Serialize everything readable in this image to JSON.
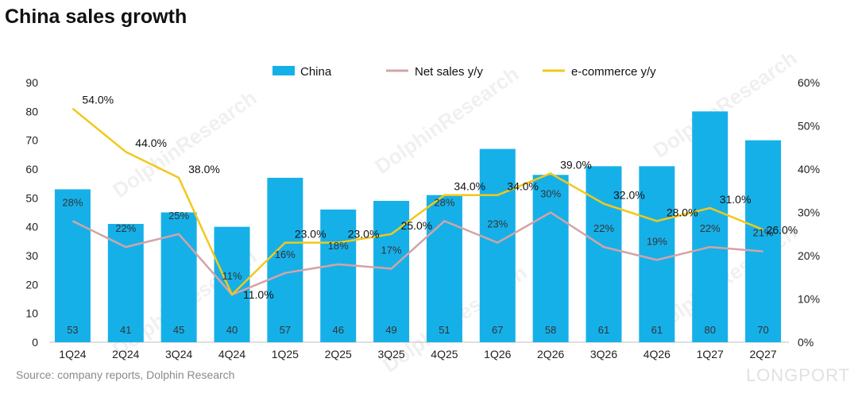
{
  "chart_data": {
    "type": "bar",
    "title": "China sales growth",
    "source": "Source: company reports, Dolphin Research",
    "watermark": "DolphinResearch",
    "brand_mark": "LONGPORT",
    "categories": [
      "1Q24",
      "2Q24",
      "3Q24",
      "4Q24",
      "1Q25",
      "2Q25",
      "3Q25",
      "4Q25",
      "1Q26",
      "2Q26",
      "3Q26",
      "4Q26",
      "1Q27",
      "2Q27"
    ],
    "y_left": {
      "ticks": [
        "0",
        "10",
        "20",
        "30",
        "40",
        "50",
        "60",
        "70",
        "80",
        "90"
      ],
      "lim": [
        0,
        90
      ]
    },
    "y_right": {
      "ticks": [
        "0%",
        "10%",
        "20%",
        "30%",
        "40%",
        "50%",
        "60%"
      ],
      "lim": [
        0,
        60
      ]
    },
    "series": [
      {
        "name": "China",
        "kind": "bar",
        "axis": "left",
        "color": "#16b0e8",
        "values": [
          53,
          41,
          45,
          40,
          57,
          46,
          49,
          51,
          67,
          58,
          61,
          61,
          80,
          70
        ],
        "labels": [
          "53",
          "41",
          "45",
          "40",
          "57",
          "46",
          "49",
          "51",
          "67",
          "58",
          "61",
          "61",
          "80",
          "70"
        ]
      },
      {
        "name": "Net sales y/y",
        "kind": "line",
        "axis": "right",
        "color": "#d4a3a6",
        "values": [
          28,
          22,
          25,
          11,
          16,
          18,
          17,
          28,
          23,
          30,
          22,
          19,
          22,
          21
        ],
        "labels": [
          "28%",
          "22%",
          "25%",
          "11%",
          "16%",
          "18%",
          "17%",
          "28%",
          "23%",
          "30%",
          "22%",
          "19%",
          "22%",
          "21%"
        ]
      },
      {
        "name": "e-commerce y/y",
        "kind": "line",
        "axis": "right",
        "color": "#f2c81a",
        "values": [
          54,
          44,
          38,
          11,
          23,
          23,
          25,
          34,
          34,
          39,
          32,
          28,
          31,
          26
        ],
        "labels": [
          "54.0%",
          "44.0%",
          "38.0%",
          "11.0%",
          "23.0%",
          "23.0%",
          "25.0%",
          "34.0%",
          "34.0%",
          "39.0%",
          "32.0%",
          "28.0%",
          "31.0%",
          "26.0%"
        ]
      }
    ],
    "legend_position": "top-center",
    "grid": false
  }
}
